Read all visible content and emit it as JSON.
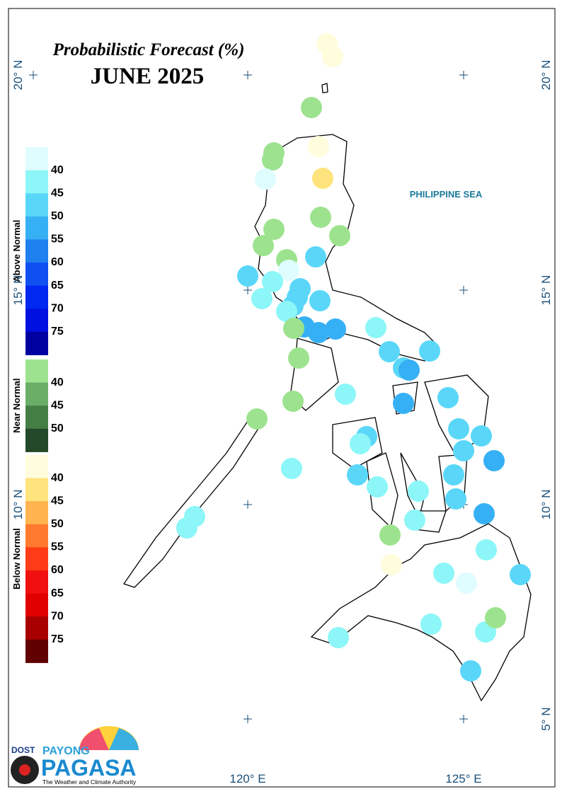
{
  "title": "Probabilistic Forecast (%)",
  "subtitle": "JUNE 2025",
  "sea_label": "PHILIPPINE SEA",
  "lat_labels": [
    "20° N",
    "15° N",
    "10° N",
    "5° N"
  ],
  "lon_labels": [
    "120° E",
    "125° E"
  ],
  "legend": [
    {
      "name": "Above Normal",
      "labels": [
        40,
        45,
        50,
        55,
        60,
        65,
        70,
        75
      ],
      "colors": [
        "#dffcff",
        "#8cf6f8",
        "#5ad7f8",
        "#36b0f4",
        "#1f80f0",
        "#1050f0",
        "#0028f0",
        "#0010e0",
        "#0000a0"
      ]
    },
    {
      "name": "Near Normal",
      "labels": [
        40,
        45,
        50
      ],
      "colors": [
        "#9de38f",
        "#6aae68",
        "#457e45",
        "#23492a"
      ]
    },
    {
      "name": "Below Normal",
      "labels": [
        40,
        45,
        50,
        55,
        60,
        65,
        70,
        75
      ],
      "colors": [
        "#fffddc",
        "#ffe47d",
        "#ffb44f",
        "#ff7a2e",
        "#ff3c17",
        "#f01010",
        "#e00000",
        "#a80000",
        "#600000"
      ]
    }
  ],
  "logo": {
    "agency": "DOST",
    "line1": "PAYONG",
    "line2": "PAGASA",
    "tagline": "The Weather and Climate Authority"
  }
}
